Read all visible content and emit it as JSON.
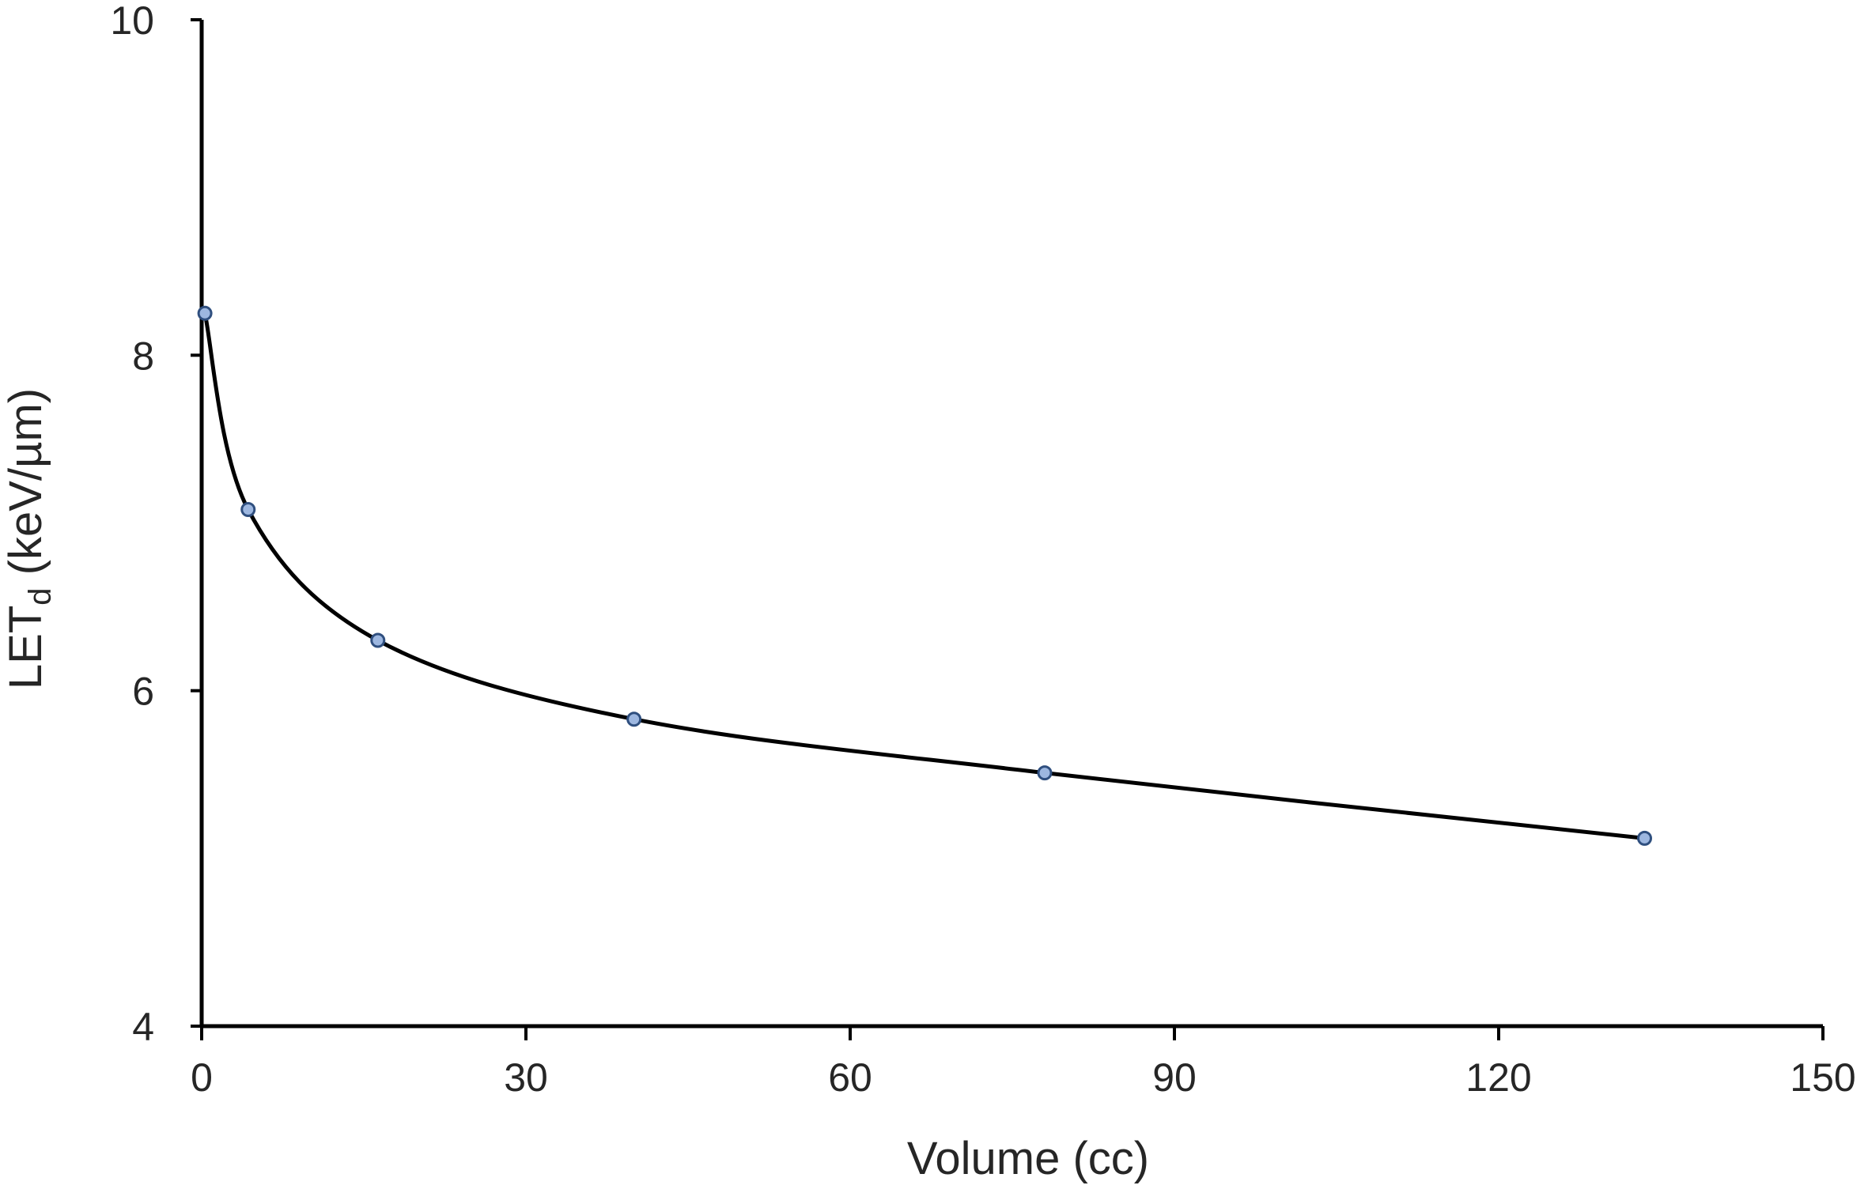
{
  "chart_data": {
    "type": "scatter",
    "xlabel": "Volume (cc)",
    "ylabel_main": "LET",
    "ylabel_sub": "d",
    "ylabel_unit": " (keV/µm)",
    "xlim": [
      0,
      150
    ],
    "ylim": [
      4,
      10
    ],
    "xticks": [
      0,
      30,
      60,
      90,
      120,
      150
    ],
    "yticks": [
      4,
      6,
      8,
      10
    ],
    "xtick_labels": [
      "0",
      "30",
      "60",
      "90",
      "120",
      "150"
    ],
    "ytick_labels": [
      "4",
      "6",
      "8",
      "10"
    ],
    "grid": false,
    "smooth_line": true,
    "series": [
      {
        "x": [
          0.3,
          4.3,
          16.3,
          40.0,
          78.0,
          133.5
        ],
        "y": [
          8.25,
          7.08,
          6.3,
          5.83,
          5.51,
          5.12
        ]
      }
    ],
    "colors": {
      "marker_fill": "#9db7e0",
      "marker_stroke": "#2f4f7f",
      "line": "#000000"
    }
  }
}
